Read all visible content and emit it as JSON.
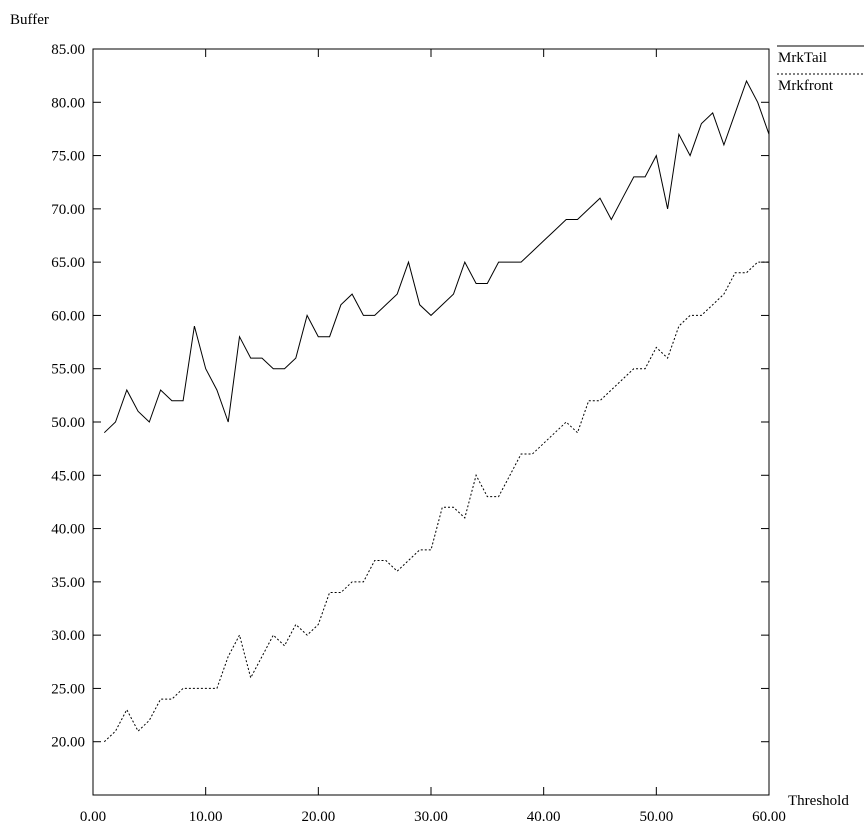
{
  "chart_data": {
    "type": "line",
    "ylabel": "Buffer",
    "xlabel": "Threshold",
    "xlim": [
      0,
      60
    ],
    "ylim": [
      15,
      85
    ],
    "x_ticks": [
      "0.00",
      "10.00",
      "20.00",
      "30.00",
      "40.00",
      "50.00",
      "60.00"
    ],
    "y_ticks": [
      "20.00",
      "25.00",
      "30.00",
      "35.00",
      "40.00",
      "45.00",
      "50.00",
      "55.00",
      "60.00",
      "65.00",
      "70.00",
      "75.00",
      "80.00",
      "85.00"
    ],
    "legend_position": "top-right, outside plot",
    "grid": false,
    "x": [
      1,
      2,
      3,
      4,
      5,
      6,
      7,
      8,
      9,
      10,
      11,
      12,
      13,
      14,
      15,
      16,
      17,
      18,
      19,
      20,
      21,
      22,
      23,
      24,
      25,
      26,
      27,
      28,
      29,
      30,
      31,
      32,
      33,
      34,
      35,
      36,
      37,
      38,
      39,
      40,
      41,
      42,
      43,
      44,
      45,
      46,
      47,
      48,
      49,
      50,
      51,
      52,
      53,
      54,
      55,
      56,
      57,
      58,
      59,
      60
    ],
    "series": [
      {
        "name": "MrkTail",
        "style": "solid",
        "values": [
          49,
          50,
          53,
          51,
          50,
          53,
          52,
          52,
          59,
          55,
          53,
          50,
          58,
          56,
          56,
          55,
          55,
          56,
          60,
          58,
          58,
          61,
          62,
          60,
          60,
          61,
          62,
          65,
          61,
          60,
          61,
          62,
          65,
          63,
          63,
          65,
          65,
          65,
          66,
          67,
          68,
          69,
          69,
          70,
          71,
          69,
          71,
          73,
          73,
          75,
          70,
          77,
          75,
          78,
          79,
          76,
          79,
          82,
          80,
          77
        ]
      },
      {
        "name": "Mrkfront",
        "style": "dashed",
        "values": [
          20,
          21,
          23,
          21,
          22,
          24,
          24,
          25,
          25,
          25,
          25,
          28,
          30,
          26,
          28,
          30,
          29,
          31,
          30,
          31,
          34,
          34,
          35,
          35,
          37,
          37,
          36,
          37,
          38,
          38,
          42,
          42,
          41,
          45,
          43,
          43,
          45,
          47,
          47,
          48,
          49,
          50,
          49,
          52,
          52,
          53,
          54,
          55,
          55,
          57,
          56,
          59,
          60,
          60,
          61,
          62,
          64,
          64,
          65,
          65
        ]
      }
    ]
  }
}
